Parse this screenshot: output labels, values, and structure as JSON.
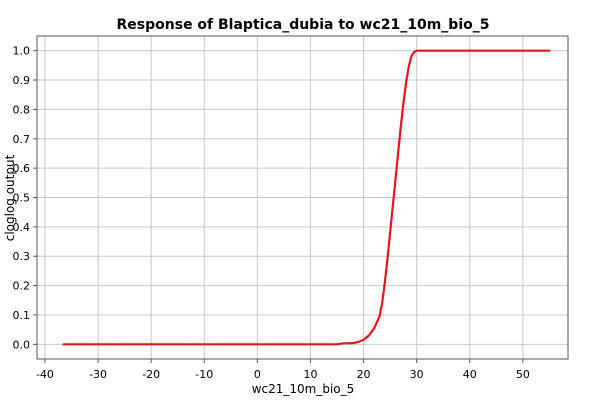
{
  "chart_data": {
    "type": "line",
    "title": "Response of Blaptica_dubia to wc21_10m_bio_5",
    "xlabel": "wc21_10m_bio_5",
    "ylabel": "cloglog output",
    "xlim": [
      -41.5,
      58.5
    ],
    "ylim": [
      -0.05,
      1.05
    ],
    "x_ticks": [
      -40,
      -30,
      -20,
      -10,
      0,
      10,
      20,
      30,
      40,
      50
    ],
    "y_ticks": [
      0.0,
      0.1,
      0.2,
      0.3,
      0.4,
      0.5,
      0.6,
      0.7,
      0.8,
      0.9,
      1.0
    ],
    "y_tick_labels": [
      "0.0",
      "0.1",
      "0.2",
      "0.3",
      "0.4",
      "0.5",
      "0.6",
      "0.7",
      "0.8",
      "0.9",
      "1.0"
    ],
    "grid": true,
    "series": [
      {
        "color": "#e8141c",
        "x": [
          -36.5,
          -20,
          0,
          10,
          15,
          16,
          18,
          19,
          20,
          21,
          22,
          23,
          23.5,
          24,
          24.5,
          25,
          25.5,
          26,
          26.5,
          27,
          27.5,
          28,
          28.5,
          29,
          29.5,
          30,
          35,
          40,
          45,
          50,
          55
        ],
        "y": [
          0.0,
          0.0,
          0.0,
          0.0,
          0.0,
          0.003,
          0.004,
          0.008,
          0.015,
          0.03,
          0.055,
          0.095,
          0.14,
          0.21,
          0.29,
          0.38,
          0.47,
          0.56,
          0.65,
          0.74,
          0.82,
          0.89,
          0.945,
          0.98,
          0.995,
          1.0,
          1.0,
          1.0,
          1.0,
          1.0,
          1.0
        ]
      }
    ]
  }
}
